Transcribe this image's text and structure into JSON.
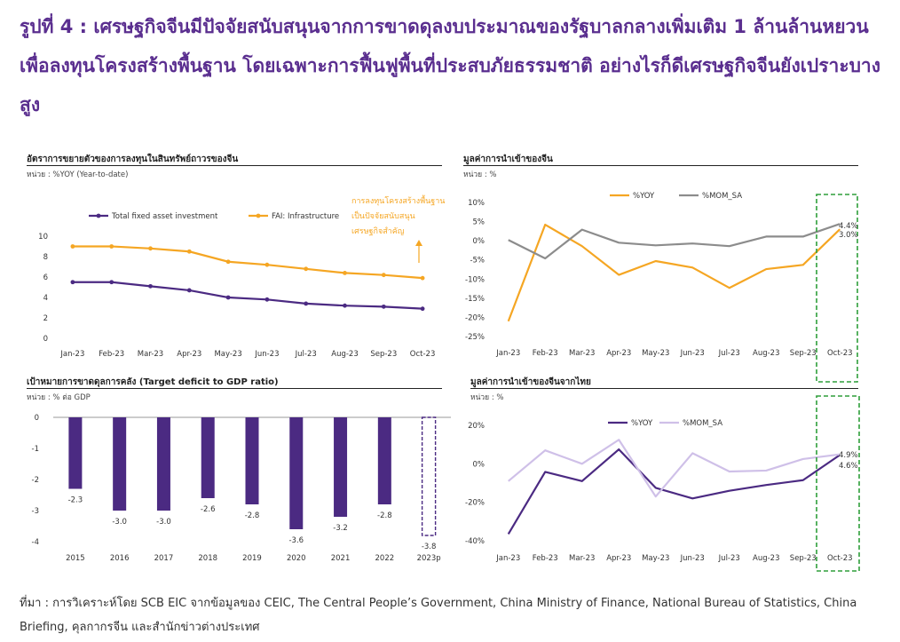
{
  "heading": "รูปที่ 4 : เศรษฐกิจจีนมีปัจจัยสนับสนุนจากการขาดดุลงบประมาณของรัฐบาลกลางเพิ่มเติม 1 ล้านล้านหยวนเพื่อลงทุนโครงสร้างพื้นฐาน โดยเฉพาะการฟื้นฟูพื้นที่ประสบภัยธรรมชาติ อย่างไรก็ดีเศรษฐกิจจีนยังเปราะบางสูง",
  "source": "ที่มา : การวิเคราะห์โดย SCB EIC จากข้อมูลของ CEIC, The Central People’s Government, China Ministry of Finance, National Bureau of Statistics, China Briefing, คุลกากรจีน และสำนักข่าวต่างประเทศ",
  "colors": {
    "purple": "#4b2a82",
    "orange": "#f5a623",
    "gray": "#8c8c8c",
    "lavender": "#cfc0e8",
    "green": "#2e9e3a",
    "title": "#5a2e8f"
  },
  "chart_data": [
    {
      "type": "line",
      "title": "อัตราการขยายตัวของการลงทุนในสินทรัพย์ถาวรของจีน",
      "unit": "หน่วย : %YOY (Year-to-date)",
      "categories": [
        "Jan-23",
        "Feb-23",
        "Mar-23",
        "Apr-23",
        "May-23",
        "Jun-23",
        "Jul-23",
        "Aug-23",
        "Sep-23",
        "Oct-23"
      ],
      "ylim": [
        0,
        10
      ],
      "yticks": [
        "0",
        "2",
        "4",
        "6",
        "8",
        "10"
      ],
      "series": [
        {
          "name": "Total fixed asset investment",
          "values": [
            5.5,
            5.5,
            5.1,
            4.7,
            4.0,
            3.8,
            3.4,
            3.2,
            3.1,
            2.9
          ]
        },
        {
          "name": "FAI: Infrastructure",
          "values": [
            9.0,
            9.0,
            8.8,
            8.5,
            7.5,
            7.2,
            6.8,
            6.4,
            6.2,
            5.9
          ]
        }
      ],
      "annotation": [
        "การลงทุนโครงสร้างพื้นฐาน",
        "เป็นปัจจัยสนับสนุน",
        "เศรษฐกิจสำคัญ"
      ]
    },
    {
      "type": "line",
      "title": "มูลค่าการนำเข้าของจีน",
      "unit": "หน่วย : %",
      "categories": [
        "Jan-23",
        "Feb-23",
        "Mar-23",
        "Apr-23",
        "May-23",
        "Jun-23",
        "Jul-23",
        "Aug-23",
        "Sep-23",
        "Oct-23"
      ],
      "ylim": [
        -25,
        10
      ],
      "yticks": [
        "-25%",
        "-20%",
        "-15%",
        "-10%",
        "-5%",
        "0%",
        "5%",
        "10%"
      ],
      "series": [
        {
          "name": "%YOY",
          "values": [
            -21.0,
            4.2,
            -1.4,
            -8.9,
            -5.3,
            -7.0,
            -12.3,
            -7.4,
            -6.3,
            3.0
          ]
        },
        {
          "name": "%MOM_SA",
          "values": [
            0.2,
            -4.6,
            2.9,
            -0.5,
            -1.2,
            -0.7,
            -1.4,
            1.1,
            1.1,
            4.4
          ]
        }
      ],
      "end_labels": [
        "4.4%",
        "3.0%"
      ]
    },
    {
      "type": "bar",
      "title": "เป้าหมายการขาดดุลการคลัง (Target deficit to GDP ratio)",
      "unit": "หน่วย : % ต่อ GDP",
      "categories": [
        "2015",
        "2016",
        "2017",
        "2018",
        "2019",
        "2020",
        "2021",
        "2022",
        "2023p"
      ],
      "values": [
        -2.3,
        -3.0,
        -3.0,
        -2.6,
        -2.8,
        -3.6,
        -3.2,
        -2.8,
        -3.8
      ],
      "value_labels": [
        "-2.3",
        "-3.0",
        "-3.0",
        "-2.6",
        "-2.8",
        "-3.6",
        "-3.2",
        "-2.8",
        "-3.8"
      ],
      "ylim": [
        -4,
        0
      ],
      "yticks": [
        "0",
        "-1",
        "-2",
        "-3",
        "-4"
      ]
    },
    {
      "type": "line",
      "title": "มูลค่าการนำเข้าของจีนจากไทย",
      "unit": "หน่วย : %",
      "categories": [
        "Jan-23",
        "Feb-23",
        "Mar-23",
        "Apr-23",
        "May-23",
        "Jun-23",
        "Jul-23",
        "Aug-23",
        "Sep-23",
        "Oct-23"
      ],
      "ylim": [
        -40,
        20
      ],
      "yticks": [
        "-40%",
        "-20%",
        "0%",
        "20%"
      ],
      "series": [
        {
          "name": "%YOY",
          "values": [
            -36.5,
            -4.2,
            -9.0,
            7.5,
            -12.5,
            -18.0,
            -14.0,
            -11.0,
            -8.5,
            4.6
          ]
        },
        {
          "name": "%MOM_SA",
          "values": [
            -9.0,
            7.0,
            0.0,
            12.5,
            -17.0,
            5.5,
            -4.0,
            -3.5,
            2.5,
            4.9
          ]
        }
      ],
      "end_labels": [
        "4.9%",
        "4.6%"
      ]
    }
  ]
}
